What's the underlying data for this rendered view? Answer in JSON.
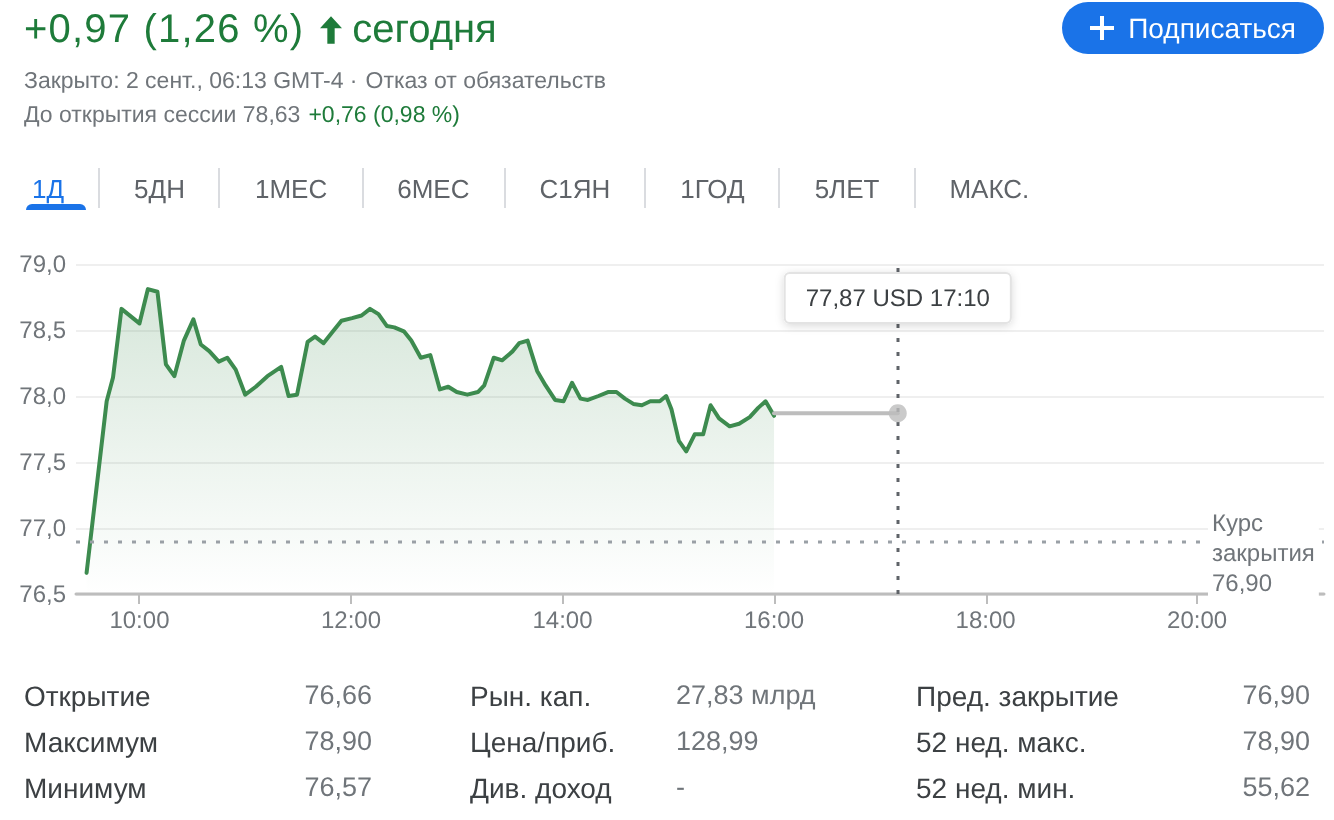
{
  "chart_data": {
    "type": "area",
    "annotations": [
      "+0,97 (1,26 %)",
      "сегодня",
      "Подписаться",
      "Закрыто: 2 сент., 06:13 GMT-4 ·",
      "Отказ от обязательств",
      "До открытия сессии 78,63",
      "+0,76 (0,98 %)",
      "1Д",
      "5ДН",
      "1МЕС",
      "6МЕС",
      "С1ЯН",
      "1ГОД",
      "5ЛЕТ",
      "МАКС.",
      "77,87 USD 17:10",
      "Открытие",
      "76,66",
      "Максимум",
      "78,90",
      "Минимум",
      "76,57",
      "Рын. кап.",
      "27,83 млрд",
      "Цена/приб.",
      "128,99",
      "Див. доход",
      "-",
      "Пред. закрытие",
      "76,90",
      "52 нед. макс.",
      "78,90",
      "52 нед. мин.",
      "55,62"
    ],
    "series": [
      {
        "color": "#3d8b4f",
        "x": [
          9.5,
          9.69,
          9.75,
          9.83,
          10.0,
          10.08,
          10.17,
          10.25,
          10.33,
          10.42,
          10.51,
          10.58,
          10.66,
          10.75,
          10.83,
          10.91,
          11.0,
          11.1,
          11.21,
          11.34,
          11.41,
          11.49,
          11.59,
          11.66,
          11.74,
          11.83,
          11.91,
          12.01,
          12.1,
          12.18,
          12.26,
          12.34,
          12.41,
          12.5,
          12.57,
          12.66,
          12.75,
          12.84,
          12.92,
          13.0,
          13.1,
          13.2,
          13.26,
          13.35,
          13.43,
          13.53,
          13.59,
          13.67,
          13.76,
          13.84,
          13.93,
          14.01,
          14.09,
          14.17,
          14.24,
          14.34,
          14.43,
          14.51,
          14.59,
          14.67,
          14.75,
          14.83,
          14.92,
          14.98,
          15.03,
          15.1,
          15.17,
          15.25,
          15.33,
          15.4,
          15.48,
          15.58,
          15.67,
          15.77,
          15.85,
          15.92,
          16.0
        ],
        "values": [
          76.66,
          77.96,
          78.14,
          78.66,
          78.55,
          78.81,
          78.79,
          78.24,
          78.15,
          78.42,
          78.58,
          78.39,
          78.34,
          78.26,
          78.29,
          78.2,
          78.01,
          78.07,
          78.15,
          78.22,
          78.0,
          78.01,
          78.41,
          78.45,
          78.4,
          78.49,
          78.57,
          78.59,
          78.61,
          78.66,
          78.62,
          78.53,
          78.52,
          78.49,
          78.42,
          78.29,
          78.31,
          78.05,
          78.07,
          78.03,
          78.01,
          78.03,
          78.08,
          78.29,
          78.27,
          78.34,
          78.4,
          78.42,
          78.19,
          78.08,
          77.97,
          77.96,
          78.1,
          77.98,
          77.97,
          78.0,
          78.03,
          78.03,
          77.98,
          77.94,
          77.93,
          77.96,
          77.96,
          78.0,
          77.9,
          77.66,
          77.58,
          77.71,
          77.71,
          77.93,
          77.83,
          77.77,
          77.79,
          77.84,
          77.91,
          77.96,
          77.85
        ]
      },
      {
        "type": "line",
        "color": "#bdbdbd",
        "x": [
          16.0,
          17.17
        ],
        "values": [
          77.87,
          77.87
        ]
      },
      {
        "type": "scatter",
        "color": "#bdbdbd",
        "x": [
          17.17
        ],
        "values": [
          77.87
        ]
      }
    ],
    "xlim": [
      9.4,
      21.2
    ],
    "xticks": [
      {
        "value": 10,
        "label": "10:00"
      },
      {
        "value": 12,
        "label": "12:00"
      },
      {
        "value": 14,
        "label": "14:00"
      },
      {
        "value": 16,
        "label": "16:00"
      },
      {
        "value": 18,
        "label": "18:00"
      },
      {
        "value": 20,
        "label": "20:00"
      }
    ],
    "ylim": [
      76.5,
      79
    ],
    "yticks": [
      {
        "value": 76.5,
        "label": "76,5"
      },
      {
        "value": 77,
        "label": "77,0"
      },
      {
        "value": 77.5,
        "label": "77,5"
      },
      {
        "value": 78,
        "label": "78,0"
      },
      {
        "value": 78.5,
        "label": "78,5"
      },
      {
        "value": 79,
        "label": "79,0"
      }
    ],
    "ref_lines": [
      {
        "axis": "y",
        "value": 76.9,
        "label": "Курс закрытия 76,90",
        "color": "#9aa0a6",
        "line_style": "dotted"
      },
      {
        "axis": "x",
        "value": 17.17,
        "color": "#5f6368",
        "line_style": "dotted"
      }
    ],
    "grid": "y"
  }
}
